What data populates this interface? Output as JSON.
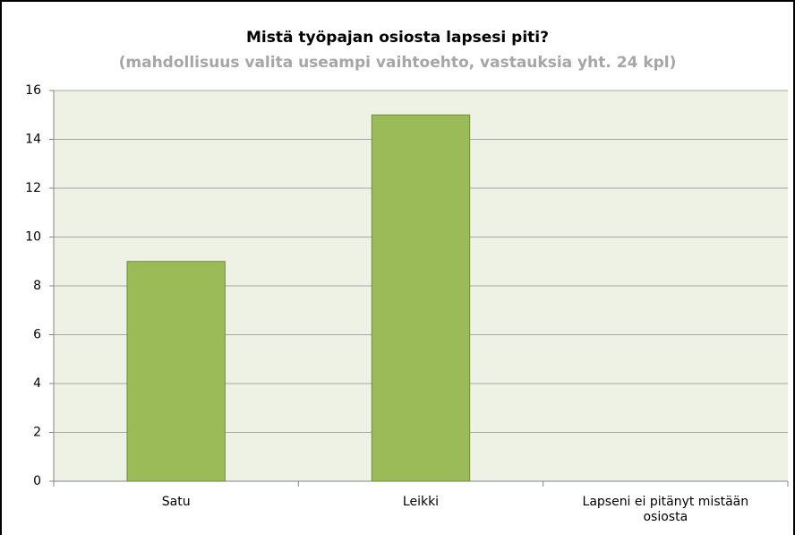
{
  "chart_data": {
    "type": "bar",
    "title": "Mistä työpajan osiosta lapsesi piti?",
    "subtitle": "(mahdollisuus valita useampi vaihtoehto, vastauksia yht. 24 kpl)",
    "categories": [
      "Satu",
      "Leikki",
      "Lapseni ei pitänyt mistään osiosta"
    ],
    "values": [
      9,
      15,
      0
    ],
    "color": "#9bbb59",
    "ylim": [
      0,
      16
    ],
    "yticks": [
      0,
      2,
      4,
      6,
      8,
      10,
      12,
      14,
      16
    ],
    "grid": true
  }
}
